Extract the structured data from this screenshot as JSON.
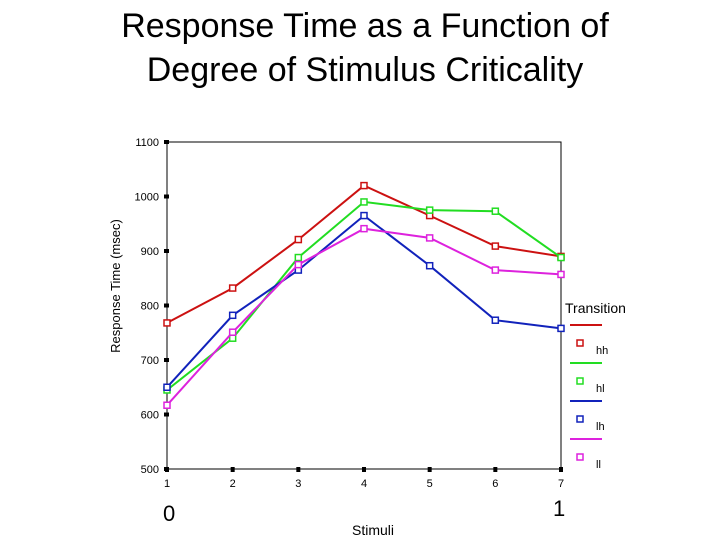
{
  "chart_data": {
    "type": "line",
    "title": "Response Time as a Function of Degree of Stimulus Criticality",
    "title_lines": [
      "Response Time as a Function of",
      "Degree of Stimulus Criticality"
    ],
    "xlabel": "Stimuli",
    "ylabel": "Response Time (msec)",
    "x": [
      1,
      2,
      3,
      4,
      5,
      6,
      7
    ],
    "x_tick_labels": [
      "1",
      "2",
      "3",
      "4",
      "5",
      "6",
      "7"
    ],
    "ylim": [
      500,
      1100
    ],
    "y_ticks": [
      500,
      600,
      700,
      800,
      900,
      1000,
      1100
    ],
    "y_tick_labels": [
      "500",
      "600",
      "700",
      "800",
      "900",
      "1000",
      "1100"
    ],
    "grid": false,
    "legend_title": "Transition",
    "legend_position": "right",
    "marker": "square",
    "series": [
      {
        "name": "hh",
        "color": "#cc1111",
        "values": [
          768,
          832,
          921,
          1020,
          965,
          909,
          890
        ]
      },
      {
        "name": "hl",
        "color": "#22dd22",
        "values": [
          645,
          740,
          888,
          990,
          975,
          973,
          888
        ]
      },
      {
        "name": "lh",
        "color": "#1122bb",
        "values": [
          650,
          782,
          865,
          965,
          873,
          773,
          758
        ]
      },
      {
        "name": "ll",
        "color": "#dd22dd",
        "values": [
          617,
          751,
          875,
          941,
          924,
          865,
          857
        ]
      }
    ],
    "annotations": {
      "left": "0",
      "right": "1"
    }
  }
}
